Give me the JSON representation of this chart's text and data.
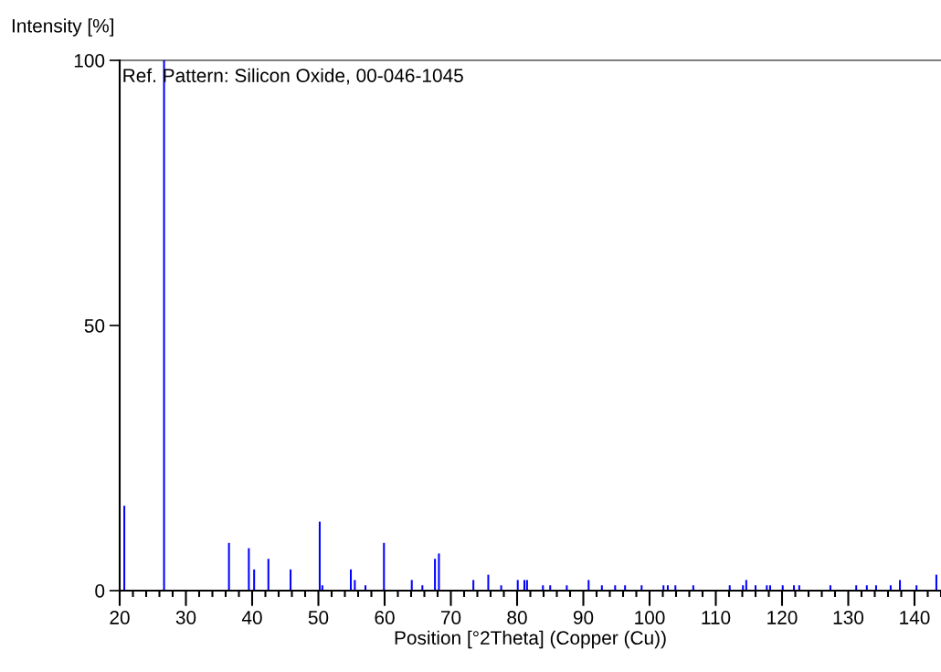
{
  "chart_data": {
    "type": "bar",
    "xlabel": "Position [°2Theta] (Copper (Cu))",
    "ylabel": "Intensity [%]",
    "annotations": [
      "Ref. Pattern: Silicon Oxide, 00-046-1045"
    ],
    "x": [
      20.7,
      26.7,
      36.5,
      39.5,
      40.3,
      42.45,
      45.8,
      50.2,
      50.6,
      54.9,
      55.5,
      57.1,
      59.9,
      64.1,
      65.7,
      67.6,
      68.2,
      73.4,
      75.65,
      77.6,
      80.1,
      81.1,
      81.5,
      83.9,
      85.0,
      87.5,
      90.8,
      92.8,
      94.8,
      96.3,
      98.8,
      102.1,
      102.75,
      103.9,
      106.6,
      112.1,
      114.1,
      114.6,
      116.0,
      117.7,
      118.2,
      120.1,
      121.8,
      122.6,
      127.3,
      131.2,
      132.8,
      134.2,
      136.4,
      137.8,
      140.3,
      143.3
    ],
    "values": [
      16,
      100,
      9,
      8,
      4,
      6,
      4,
      13,
      1,
      4,
      2,
      1,
      9,
      2,
      1,
      6,
      7,
      2,
      3,
      1,
      2,
      2,
      2,
      1,
      1,
      1,
      2,
      1,
      1,
      1,
      1,
      1,
      1,
      1,
      1,
      1,
      1,
      2,
      1,
      1,
      1,
      1,
      1,
      1,
      1,
      1,
      1,
      1,
      1,
      2,
      1,
      3
    ],
    "color": "#0000ff",
    "xlim": [
      20,
      144
    ],
    "xticks": [
      20,
      30,
      40,
      50,
      60,
      70,
      80,
      90,
      100,
      110,
      120,
      130,
      140
    ],
    "ylim": [
      0,
      100
    ],
    "yticks": [
      0,
      50,
      100
    ],
    "grid": false,
    "legend": false
  }
}
